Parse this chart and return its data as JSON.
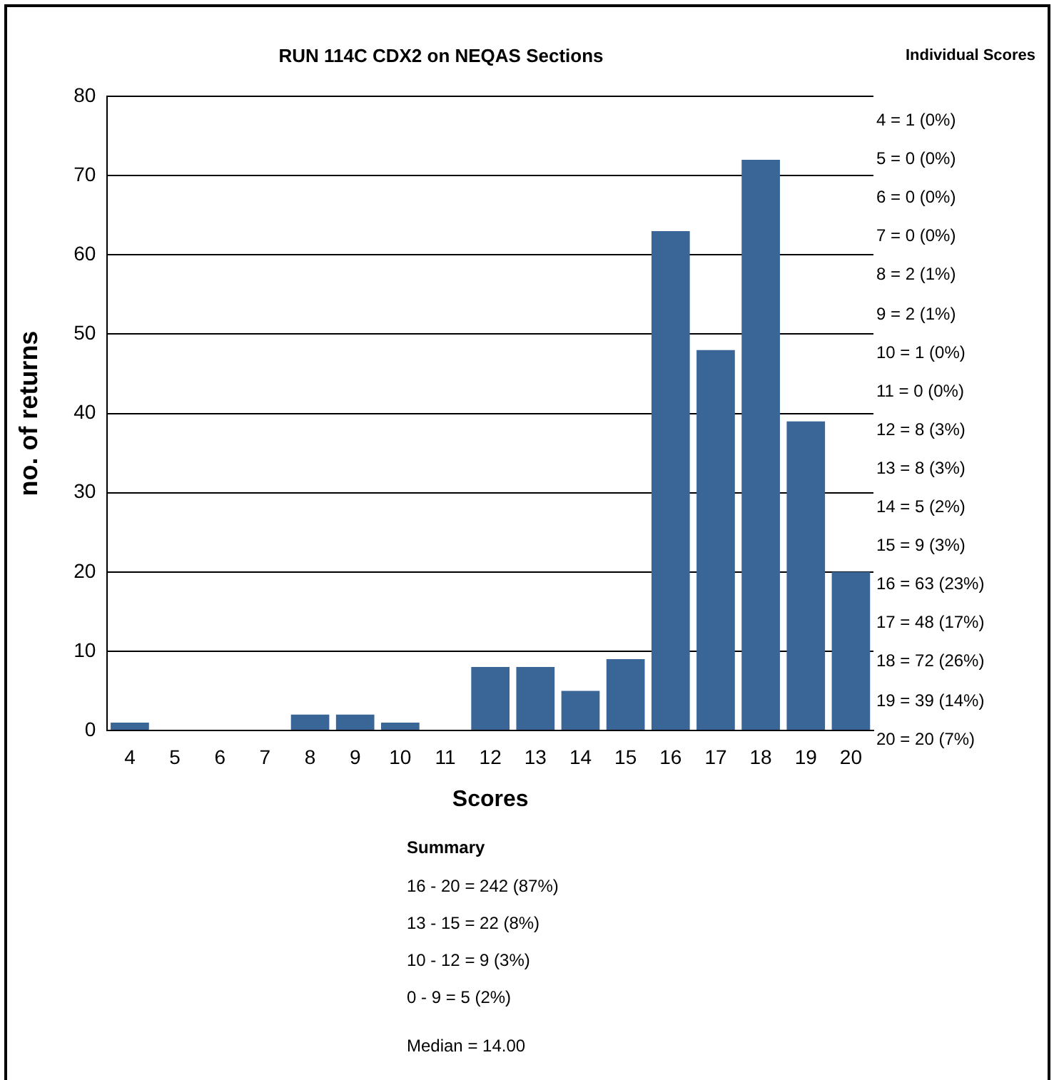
{
  "chart_data": {
    "type": "bar",
    "title": "RUN 114C CDX2 on NEQAS Sections",
    "xlabel": "Scores",
    "ylabel": "no. of returns",
    "categories": [
      "4",
      "5",
      "6",
      "7",
      "8",
      "9",
      "10",
      "11",
      "12",
      "13",
      "14",
      "15",
      "16",
      "17",
      "18",
      "19",
      "20"
    ],
    "values": [
      1,
      0,
      0,
      0,
      2,
      2,
      1,
      0,
      8,
      8,
      5,
      9,
      63,
      48,
      72,
      39,
      20
    ],
    "color": "#3a6597",
    "ylim": [
      0,
      80
    ],
    "yticks": [
      0,
      10,
      20,
      30,
      40,
      50,
      60,
      70,
      80
    ],
    "grid": "y",
    "legend": false,
    "annotations": [
      "Individual Scores",
      "4 = 1 (0%)",
      "5 = 0 (0%)",
      "6 = 0 (0%)",
      "7 = 0 (0%)",
      "8 = 2 (1%)",
      "9 = 2 (1%)",
      "10 = 1 (0%)",
      "11 = 0 (0%)",
      "12 = 8 (3%)",
      "13 = 8 (3%)",
      "14 = 5 (2%)",
      "15 = 9 (3%)",
      "16 = 63 (23%)",
      "17 = 48 (17%)",
      "18 = 72 (26%)",
      "19 = 39 (14%)",
      "20 = 20 (7%)",
      "Summary",
      "16 - 20 = 242 (87%)",
      "13 - 15 = 22 (8%)",
      "10 - 12 = 9 (3%)",
      "0 - 9 = 5 (2%)",
      "Median = 14.00"
    ]
  }
}
